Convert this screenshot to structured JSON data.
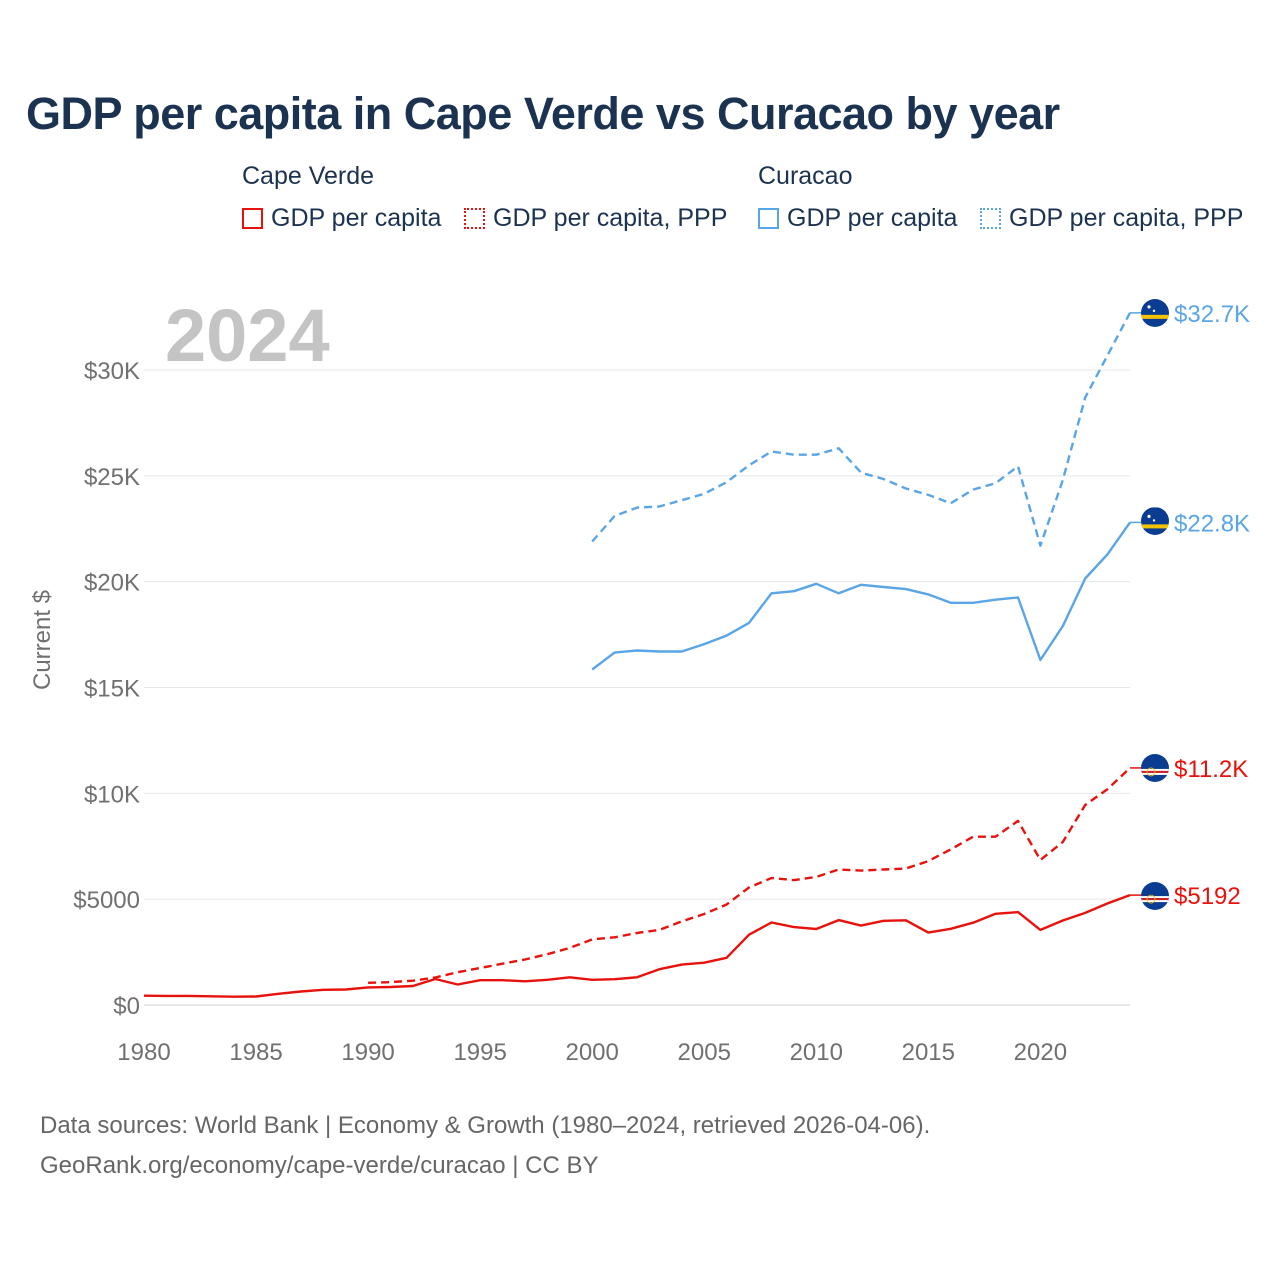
{
  "title": "GDP per capita in Cape Verde vs Curacao by year",
  "legend": {
    "groups": [
      {
        "name": "Cape Verde",
        "color": "#e8120c",
        "items": [
          {
            "label": "GDP per capita",
            "style": "solid"
          },
          {
            "label": "GDP per capita, PPP",
            "style": "dotted"
          }
        ]
      },
      {
        "name": "Curacao",
        "color": "#5aa5e6",
        "items": [
          {
            "label": "GDP per capita",
            "style": "solid"
          },
          {
            "label": "GDP per capita, PPP",
            "style": "dotted"
          }
        ]
      }
    ]
  },
  "year_overlay": "2024",
  "footer": {
    "line1": "Data sources: World Bank | Economy & Growth (1980–2024, retrieved 2026-04-06).",
    "line2": "GeoRank.org/economy/cape-verde/curacao | CC BY"
  },
  "chart_data": {
    "type": "line",
    "title": "GDP per capita in Cape Verde vs Curacao by year",
    "xlabel": "",
    "ylabel": "Current $",
    "xlim": [
      1980,
      2024
    ],
    "ylim": [
      0,
      32700
    ],
    "x_ticks": [
      1980,
      1985,
      1990,
      1995,
      2000,
      2005,
      2010,
      2015,
      2020
    ],
    "x_tick_labels": [
      "1980",
      "1985",
      "1990",
      "1995",
      "2000",
      "2005",
      "2010",
      "2015",
      "2020"
    ],
    "y_ticks": [
      0,
      5000,
      10000,
      15000,
      20000,
      25000,
      30000
    ],
    "y_tick_labels": [
      "$0",
      "$5000",
      "$10K",
      "$15K",
      "$20K",
      "$25K",
      "$30K"
    ],
    "grid": true,
    "series": [
      {
        "name": "Curacao GDP per capita, PPP",
        "country": "Curacao",
        "color": "#5aa5e6",
        "dash": "dashed",
        "end_label": "$32.7K",
        "flag": "curacao",
        "x": [
          2000,
          2001,
          2002,
          2003,
          2004,
          2005,
          2006,
          2007,
          2008,
          2009,
          2010,
          2011,
          2012,
          2013,
          2014,
          2015,
          2016,
          2017,
          2018,
          2019,
          2020,
          2021,
          2022,
          2023,
          2024
        ],
        "values": [
          21900,
          23100,
          23500,
          23550,
          23850,
          24150,
          24700,
          25500,
          26150,
          26000,
          26000,
          26300,
          25150,
          24850,
          24400,
          24100,
          23700,
          24350,
          24650,
          25450,
          21700,
          24800,
          28700,
          30700,
          32700
        ]
      },
      {
        "name": "Curacao GDP per capita",
        "country": "Curacao",
        "color": "#5aa5e6",
        "dash": "solid",
        "end_label": "$22.8K",
        "flag": "curacao",
        "x": [
          2000,
          2001,
          2002,
          2003,
          2004,
          2005,
          2006,
          2007,
          2008,
          2009,
          2010,
          2011,
          2012,
          2013,
          2014,
          2015,
          2016,
          2017,
          2018,
          2019,
          2020,
          2021,
          2022,
          2023,
          2024
        ],
        "values": [
          15850,
          16650,
          16750,
          16700,
          16700,
          17050,
          17450,
          18050,
          19450,
          19550,
          19900,
          19450,
          19850,
          19750,
          19650,
          19400,
          19000,
          19000,
          19150,
          19250,
          16300,
          17900,
          20150,
          21300,
          22800
        ]
      },
      {
        "name": "Cape Verde GDP per capita, PPP",
        "country": "Cape Verde",
        "color": "#e8120c",
        "dash": "dashed",
        "end_label": "$11.2K",
        "flag": "cape-verde",
        "x": [
          1990,
          1991,
          1992,
          1993,
          1994,
          1995,
          1996,
          1997,
          1998,
          1999,
          2000,
          2001,
          2002,
          2003,
          2004,
          2005,
          2006,
          2007,
          2008,
          2009,
          2010,
          2011,
          2012,
          2013,
          2014,
          2015,
          2016,
          2017,
          2018,
          2019,
          2020,
          2021,
          2022,
          2023,
          2024
        ],
        "values": [
          1050,
          1080,
          1150,
          1300,
          1550,
          1750,
          1950,
          2150,
          2400,
          2700,
          3100,
          3200,
          3400,
          3550,
          3950,
          4300,
          4750,
          5550,
          6000,
          5900,
          6050,
          6400,
          6350,
          6400,
          6450,
          6800,
          7350,
          7950,
          7950,
          8700,
          6850,
          7700,
          9450,
          10200,
          11200
        ]
      },
      {
        "name": "Cape Verde GDP per capita",
        "country": "Cape Verde",
        "color": "#e8120c",
        "dash": "solid",
        "end_label": "$5192",
        "flag": "cape-verde",
        "x": [
          1980,
          1981,
          1982,
          1983,
          1984,
          1985,
          1986,
          1987,
          1988,
          1989,
          1990,
          1991,
          1992,
          1993,
          1994,
          1995,
          1996,
          1997,
          1998,
          1999,
          2000,
          2001,
          2002,
          2003,
          2004,
          2005,
          2006,
          2007,
          2008,
          2009,
          2010,
          2011,
          2012,
          2013,
          2014,
          2015,
          2016,
          2017,
          2018,
          2019,
          2020,
          2021,
          2022,
          2023,
          2024
        ],
        "values": [
          440,
          430,
          430,
          410,
          390,
          400,
          530,
          640,
          720,
          730,
          830,
          850,
          900,
          1230,
          970,
          1170,
          1170,
          1120,
          1190,
          1310,
          1190,
          1220,
          1310,
          1690,
          1910,
          2000,
          2230,
          3320,
          3900,
          3680,
          3590,
          4010,
          3750,
          3980,
          4000,
          3420,
          3600,
          3890,
          4310,
          4390,
          3550,
          3990,
          4350,
          4800,
          5192
        ]
      }
    ]
  }
}
